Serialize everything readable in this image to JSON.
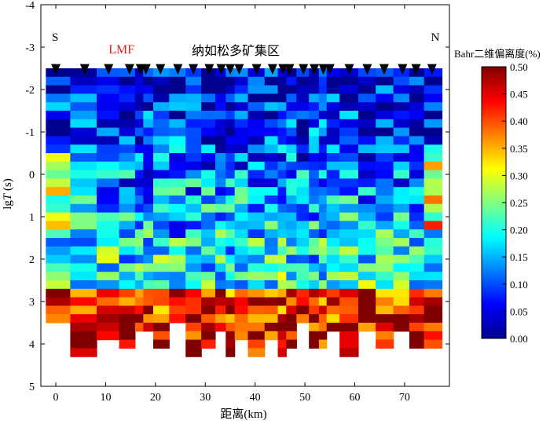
{
  "chart_data": {
    "type": "heatmap",
    "title": "纳如松多矿集区",
    "xlabel": "距离(km)",
    "ylabel_prefix": "lg",
    "ylabel_var": "T",
    "ylabel_unit": " (s)",
    "xlim": [
      -3,
      79
    ],
    "ylim": [
      -4,
      5
    ],
    "x_ticks": [
      "0",
      "10",
      "20",
      "30",
      "40",
      "50",
      "60",
      "70"
    ],
    "y_ticks": [
      "-4",
      "-3",
      "-2",
      "-1",
      "0",
      "1",
      "2",
      "3",
      "4",
      "5"
    ],
    "annotations": [
      {
        "text": "S",
        "x": -0.8,
        "y": -3.15,
        "color": "#000000"
      },
      {
        "text": "N",
        "x": 75.3,
        "y": -3.15,
        "color": "#000000"
      },
      {
        "text": "LMF",
        "x": 10.6,
        "y": -2.85,
        "color": "#e02020"
      }
    ],
    "stations_km": [
      0,
      5.8,
      10.6,
      14.8,
      17.0,
      18.1,
      21.0,
      24.5,
      27.6,
      30.8,
      33.2,
      35.0,
      36.8,
      40.3,
      43.5,
      45.6,
      46.9,
      49.7,
      51.9,
      53.7,
      55.0,
      58.9,
      62.5,
      65.9,
      69.6,
      72.3,
      75.5
    ],
    "cell_period_range": [
      -2.5,
      4.3
    ],
    "colorbar": {
      "label": "Bahr二维偏离度(%)",
      "min": 0.0,
      "max": 0.5,
      "ticks": [
        "0.00",
        "0.05",
        "0.10",
        "0.15",
        "0.20",
        "0.25",
        "0.30",
        "0.35",
        "0.40",
        "0.45",
        "0.50"
      ],
      "colors": [
        "#00008f",
        "#0000ff",
        "#0080ff",
        "#00ffff",
        "#80ff80",
        "#ffff00",
        "#ff8000",
        "#ff0000",
        "#800000"
      ]
    }
  }
}
